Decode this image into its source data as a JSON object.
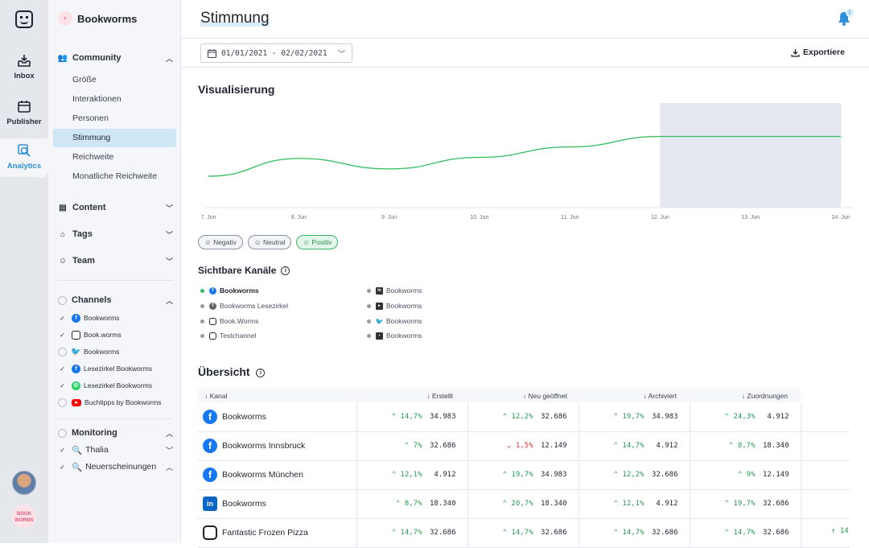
{
  "rail": {
    "items": [
      {
        "label": "Inbox"
      },
      {
        "label": "Publisher"
      },
      {
        "label": "Analytics"
      }
    ],
    "brand_avatar_text": "BOOK WORMS"
  },
  "sidebar": {
    "workspace": "Bookworms",
    "community": {
      "label": "Community",
      "items": [
        "Größe",
        "Interaktionen",
        "Personen",
        "Stimmung",
        "Reichweite",
        "Monatliche Reichweite"
      ],
      "active": "Stimmung"
    },
    "sections": [
      "Content",
      "Tags",
      "Team"
    ],
    "channels": {
      "label": "Channels",
      "items": [
        {
          "label": "Bookworms",
          "network": "facebook",
          "checked": true
        },
        {
          "label": "Book.worms",
          "network": "instagram",
          "checked": true
        },
        {
          "label": "Bookworms",
          "network": "twitter",
          "checked": false
        },
        {
          "label": "Lesezirkel Bookworms",
          "network": "facebook",
          "checked": true
        },
        {
          "label": "Lesezirkel Bookworms",
          "network": "whatsapp",
          "checked": true
        },
        {
          "label": "Buchtipps by Bookworms",
          "network": "youtube",
          "checked": false
        }
      ]
    },
    "monitoring": {
      "label": "Monitoring",
      "items": [
        "Thalia",
        "Neuerscheinungen"
      ]
    }
  },
  "header": {
    "title": "Stimmung",
    "notifications": "2"
  },
  "toolbar": {
    "date_range": "01/01/2021 - 02/02/2021",
    "export_label": "Exportiere"
  },
  "visualisierung": {
    "title": "Visualisierung"
  },
  "chart_data": {
    "type": "line",
    "x": [
      "7. Jun",
      "8. Jun",
      "9. Jun",
      "10. Jun",
      "11. Jun",
      "12. Jun",
      "13. Jun",
      "14. Jun"
    ],
    "series": [
      {
        "values": [
          30,
          47,
          37,
          48,
          58,
          68,
          68,
          68
        ],
        "color": "#3fbf6a"
      }
    ],
    "highlight_range": [
      "12. Jun",
      "14. Jun"
    ],
    "ylim": [
      0,
      100
    ],
    "grid": false
  },
  "sentiments": [
    "Negativ",
    "Neutral",
    "Positiv"
  ],
  "active_sentiment": "Positiv",
  "visible_channels": {
    "title": "Sichtbare Kanäle",
    "items": [
      {
        "label": "Bookworms",
        "network": "facebook",
        "active": true
      },
      {
        "label": "Bookworms Lesezirkel",
        "network": "facebook",
        "active": false
      },
      {
        "label": "Book.Worms",
        "network": "instagram",
        "active": false
      },
      {
        "label": "Testchannel",
        "network": "instagram",
        "active": false
      },
      {
        "label": "Bookworms",
        "network": "linkedin",
        "active": false
      },
      {
        "label": "Bookworms",
        "network": "youtube",
        "active": false
      },
      {
        "label": "Bookworms",
        "network": "twitter",
        "active": false
      },
      {
        "label": "Bookworms",
        "network": "other",
        "active": false
      }
    ]
  },
  "overview": {
    "title": "Übersicht",
    "columns": [
      "Kanal",
      "Erstellt",
      "Neu geöffnet",
      "Archiviert",
      "Zuordnungen"
    ],
    "rows": [
      {
        "name": "Bookworms",
        "network": "facebook",
        "cells": [
          [
            "14,7%",
            "34.983",
            "up"
          ],
          [
            "12,2%",
            "32.686",
            "up"
          ],
          [
            "19,7%",
            "34.983",
            "up"
          ],
          [
            "24,3%",
            "4.912",
            "up"
          ]
        ]
      },
      {
        "name": "Bookworms Innsbruck",
        "network": "facebook",
        "cells": [
          [
            "7%",
            "32.686",
            "up"
          ],
          [
            "1,5%",
            "12.149",
            "down"
          ],
          [
            "14,7%",
            "4.912",
            "up"
          ],
          [
            "8,7%",
            "18.340",
            "up"
          ]
        ]
      },
      {
        "name": "Bookworms München",
        "network": "facebook",
        "cells": [
          [
            "12,1%",
            "4.912",
            "up"
          ],
          [
            "19,7%",
            "34.983",
            "up"
          ],
          [
            "12,2%",
            "32.686",
            "up"
          ],
          [
            "9%",
            "12.149",
            "up"
          ]
        ]
      },
      {
        "name": "Bookworms",
        "network": "linkedin",
        "cells": [
          [
            "8,7%",
            "18.340",
            "up"
          ],
          [
            "20,7%",
            "18.340",
            "up"
          ],
          [
            "12,1%",
            "4.912",
            "up"
          ],
          [
            "19,7%",
            "32.686",
            "up"
          ]
        ]
      },
      {
        "name": "Fantastic Frozen Pizza",
        "network": "instagram",
        "cells": [
          [
            "14,7%",
            "32.686",
            "up"
          ],
          [
            "14,7%",
            "32.686",
            "up"
          ],
          [
            "14,7%",
            "32.686",
            "up"
          ],
          [
            "14,7%",
            "32.686",
            "up"
          ]
        ]
      }
    ],
    "overflow_text": "14"
  }
}
